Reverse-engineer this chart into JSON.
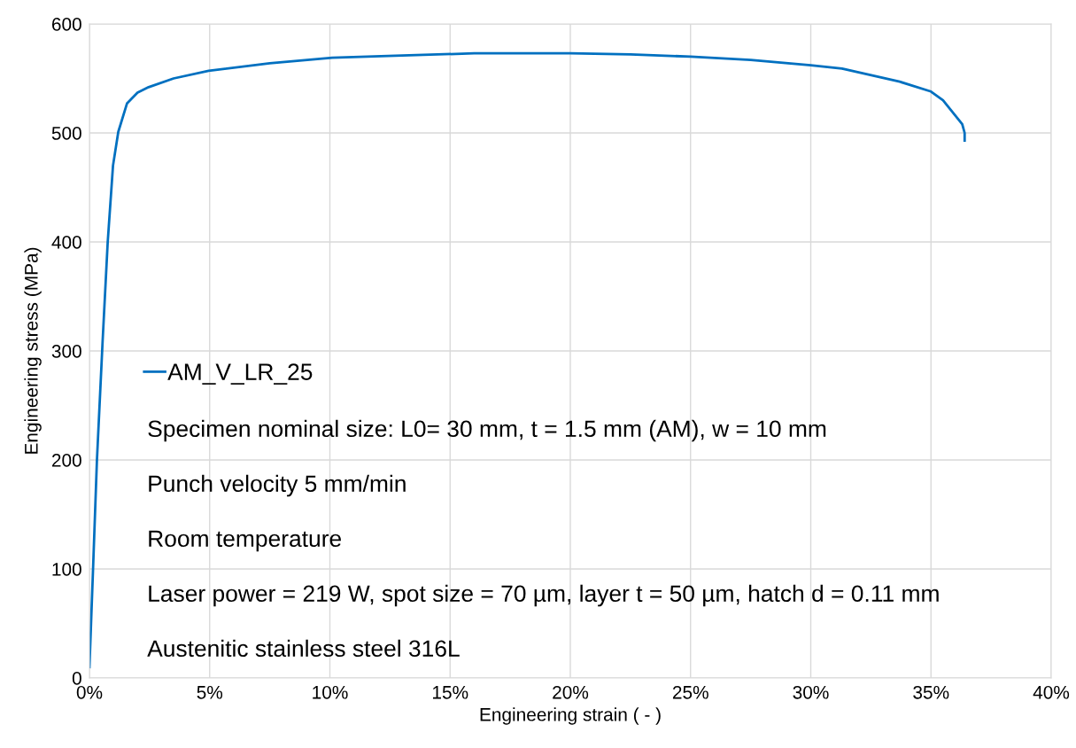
{
  "chart_data": {
    "type": "line",
    "xlabel": "Engineering strain ( - )",
    "ylabel": "Engineering stress (MPa)",
    "xlim": [
      0,
      0.4
    ],
    "ylim": [
      0,
      600
    ],
    "xticks": [
      {
        "value": 0,
        "label": "0%"
      },
      {
        "value": 0.05,
        "label": "5%"
      },
      {
        "value": 0.1,
        "label": "10%"
      },
      {
        "value": 0.15,
        "label": "15%"
      },
      {
        "value": 0.2,
        "label": "20%"
      },
      {
        "value": 0.25,
        "label": "25%"
      },
      {
        "value": 0.3,
        "label": "30%"
      },
      {
        "value": 0.35,
        "label": "35%"
      },
      {
        "value": 0.4,
        "label": "40%"
      }
    ],
    "yticks": [
      0,
      100,
      200,
      300,
      400,
      500,
      600
    ],
    "grid": true,
    "legend": "left",
    "marker": "none",
    "line_style": "solid",
    "series": [
      {
        "name": "AM_V_LR_25",
        "color": "#0070c0",
        "x": [
          0.0,
          0.0015,
          0.0031,
          0.0055,
          0.0076,
          0.0098,
          0.012,
          0.0156,
          0.02,
          0.0246,
          0.035,
          0.0496,
          0.075,
          0.101,
          0.13,
          0.16,
          0.18,
          0.2,
          0.225,
          0.25,
          0.275,
          0.3,
          0.313,
          0.337,
          0.35,
          0.355,
          0.359,
          0.363,
          0.364,
          0.364
        ],
        "values": [
          10,
          100,
          199,
          310,
          400,
          470,
          501,
          527,
          537,
          542,
          550,
          557,
          564,
          569,
          571,
          573,
          573,
          573,
          572,
          570,
          567,
          562,
          559,
          547,
          538,
          530,
          519,
          508,
          500,
          493
        ]
      }
    ],
    "annotations": [
      "Specimen nominal size: L0= 30 mm, t = 1.5 mm (AM), w = 10 mm",
      "Punch velocity 5 mm/min",
      "Room temperature",
      "Laser power = 219 W, spot size = 70 µm, layer t = 50 µm, hatch d = 0.11 mm",
      "Austenitic stainless steel 316L"
    ]
  }
}
